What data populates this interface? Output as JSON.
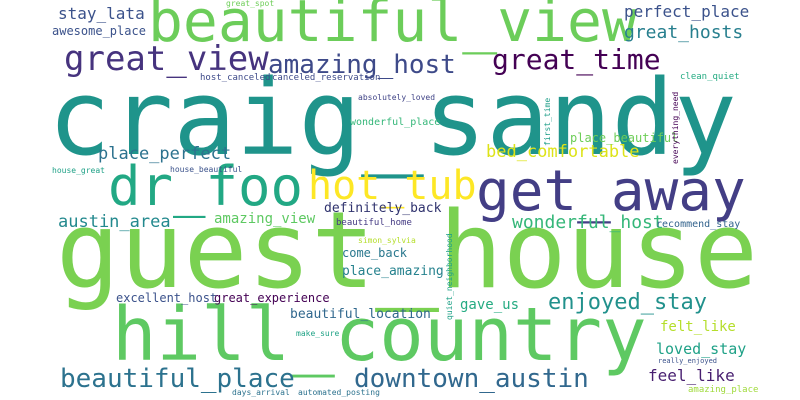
{
  "palette": {
    "c1": "#1f948b",
    "c2": "#7ad151",
    "c3": "#433e85",
    "c4": "#2c728e",
    "c5": "#fde725",
    "c6": "#440154",
    "c7": "#22a884",
    "c8": "#3b528b",
    "c9": "#b5de2b",
    "c10": "#35b779"
  },
  "words": [
    {
      "text": "craig_sandy",
      "color": "#1f948b"
    },
    {
      "text": "guest_house",
      "color": "#7ad151"
    },
    {
      "text": "beautiful_view",
      "color": "#6ccd5a"
    },
    {
      "text": "hill_country",
      "color": "#5ec962"
    },
    {
      "text": "get_away",
      "color": "#433e85"
    },
    {
      "text": "dr_foo",
      "color": "#22a884"
    },
    {
      "text": "hot_tub",
      "color": "#fde725"
    },
    {
      "text": "great_view",
      "color": "#46337e"
    },
    {
      "text": "amazing_host",
      "color": "#3e4a89"
    },
    {
      "text": "great_time",
      "color": "#440154"
    },
    {
      "text": "beautiful_place",
      "color": "#2c728e"
    },
    {
      "text": "downtown_austin",
      "color": "#31688e"
    },
    {
      "text": "enjoyed_stay",
      "color": "#21918c"
    },
    {
      "text": "great_hosts",
      "color": "#277f8e"
    },
    {
      "text": "perfect_place",
      "color": "#3b528b"
    },
    {
      "text": "stay_lata",
      "color": "#3b528b"
    },
    {
      "text": "bed_comfortable",
      "color": "#dde318"
    },
    {
      "text": "place_perfect",
      "color": "#2c728e"
    },
    {
      "text": "austin_area",
      "color": "#23898e"
    },
    {
      "text": "wonderful_host",
      "color": "#35b779"
    },
    {
      "text": "amazing_view",
      "color": "#5ec962"
    },
    {
      "text": "definitely_back",
      "color": "#30336e"
    },
    {
      "text": "beautiful_home",
      "color": "#443a83"
    },
    {
      "text": "loved_stay",
      "color": "#1fa187"
    },
    {
      "text": "feel_like",
      "color": "#481f70"
    },
    {
      "text": "felt_like",
      "color": "#b5de2b"
    },
    {
      "text": "gave_us",
      "color": "#25ab82"
    },
    {
      "text": "place_amazing",
      "color": "#26828e"
    },
    {
      "text": "come_back",
      "color": "#2a788e"
    },
    {
      "text": "excellent_host",
      "color": "#3b528b"
    },
    {
      "text": "great_experience",
      "color": "#440154"
    },
    {
      "text": "beautiful_location",
      "color": "#31688e"
    },
    {
      "text": "awesome_place",
      "color": "#3b528b"
    },
    {
      "text": "place_beautiful",
      "color": "#6ece58"
    },
    {
      "text": "recommend_stay",
      "color": "#33638d"
    },
    {
      "text": "wonderful_place",
      "color": "#35b779"
    },
    {
      "text": "absolutely_loved",
      "color": "#414487"
    },
    {
      "text": "host_canceled",
      "color": "#3e4a89"
    },
    {
      "text": "canceled_reservation",
      "color": "#3e4a89"
    },
    {
      "text": "clean_quiet",
      "color": "#25ab82"
    },
    {
      "text": "great_spot",
      "color": "#6ece58"
    },
    {
      "text": "house_beautiful",
      "color": "#3b528b"
    },
    {
      "text": "house_great",
      "color": "#1fa187"
    },
    {
      "text": "simon_sylvia",
      "color": "#b5de2b"
    },
    {
      "text": "make_sure",
      "color": "#20a386"
    },
    {
      "text": "really_enjoyed",
      "color": "#3b528b"
    },
    {
      "text": "days_arrival",
      "color": "#2c728e"
    },
    {
      "text": "automated_posting",
      "color": "#2c728e"
    },
    {
      "text": "amazing_place",
      "color": "#9fda3a"
    },
    {
      "text": "first_time",
      "color": "#1f9e89"
    },
    {
      "text": "everything_need",
      "color": "#440154"
    },
    {
      "text": "quiet_neighborhood",
      "color": "#1fa187"
    }
  ]
}
